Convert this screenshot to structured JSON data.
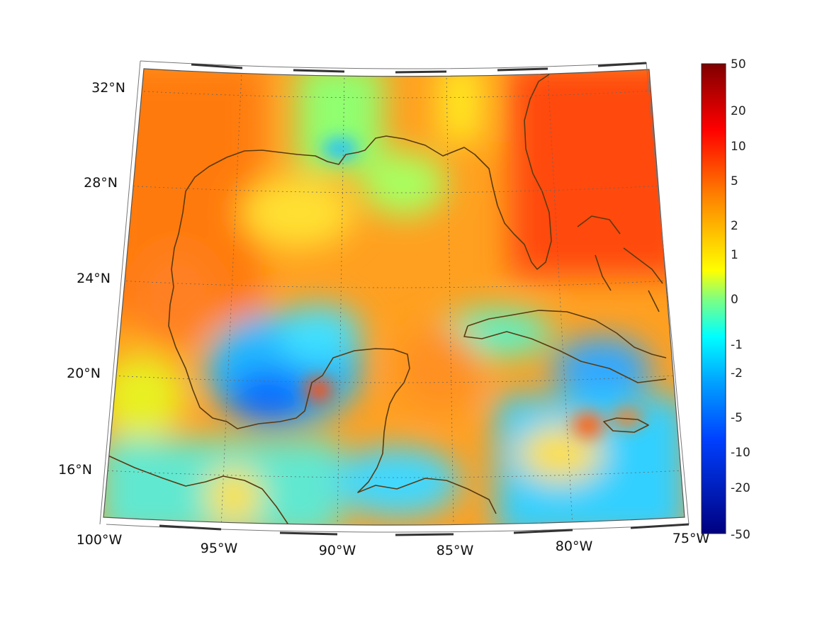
{
  "map": {
    "lon_ticks": [
      "100°W",
      "95°W",
      "90°W",
      "85°W",
      "80°W",
      "75°W"
    ],
    "lat_ticks": [
      "32°N",
      "28°N",
      "24°N",
      "20°N",
      "16°N"
    ],
    "lon_range": [
      -100,
      -75
    ],
    "lat_range": [
      14,
      33
    ],
    "coastline_color": "#5a3a10",
    "grid": "dotted"
  },
  "colorbar": {
    "ticks": [
      "50",
      "20",
      "10",
      "5",
      "2",
      "1",
      "0",
      "-1",
      "-2",
      "-5",
      "-10",
      "-20",
      "-50"
    ],
    "colormap": "jet",
    "scale": "symmetric-log"
  },
  "field_palette": {
    "land_north_west": "#ff7a10",
    "atlantic_east": "#ff4a10",
    "gulf_center": "#ffb020",
    "bay_of_campeche": "#1a8cff",
    "caribbean_south": "#30d8ff",
    "yucatan_channel": "#ffa010"
  }
}
